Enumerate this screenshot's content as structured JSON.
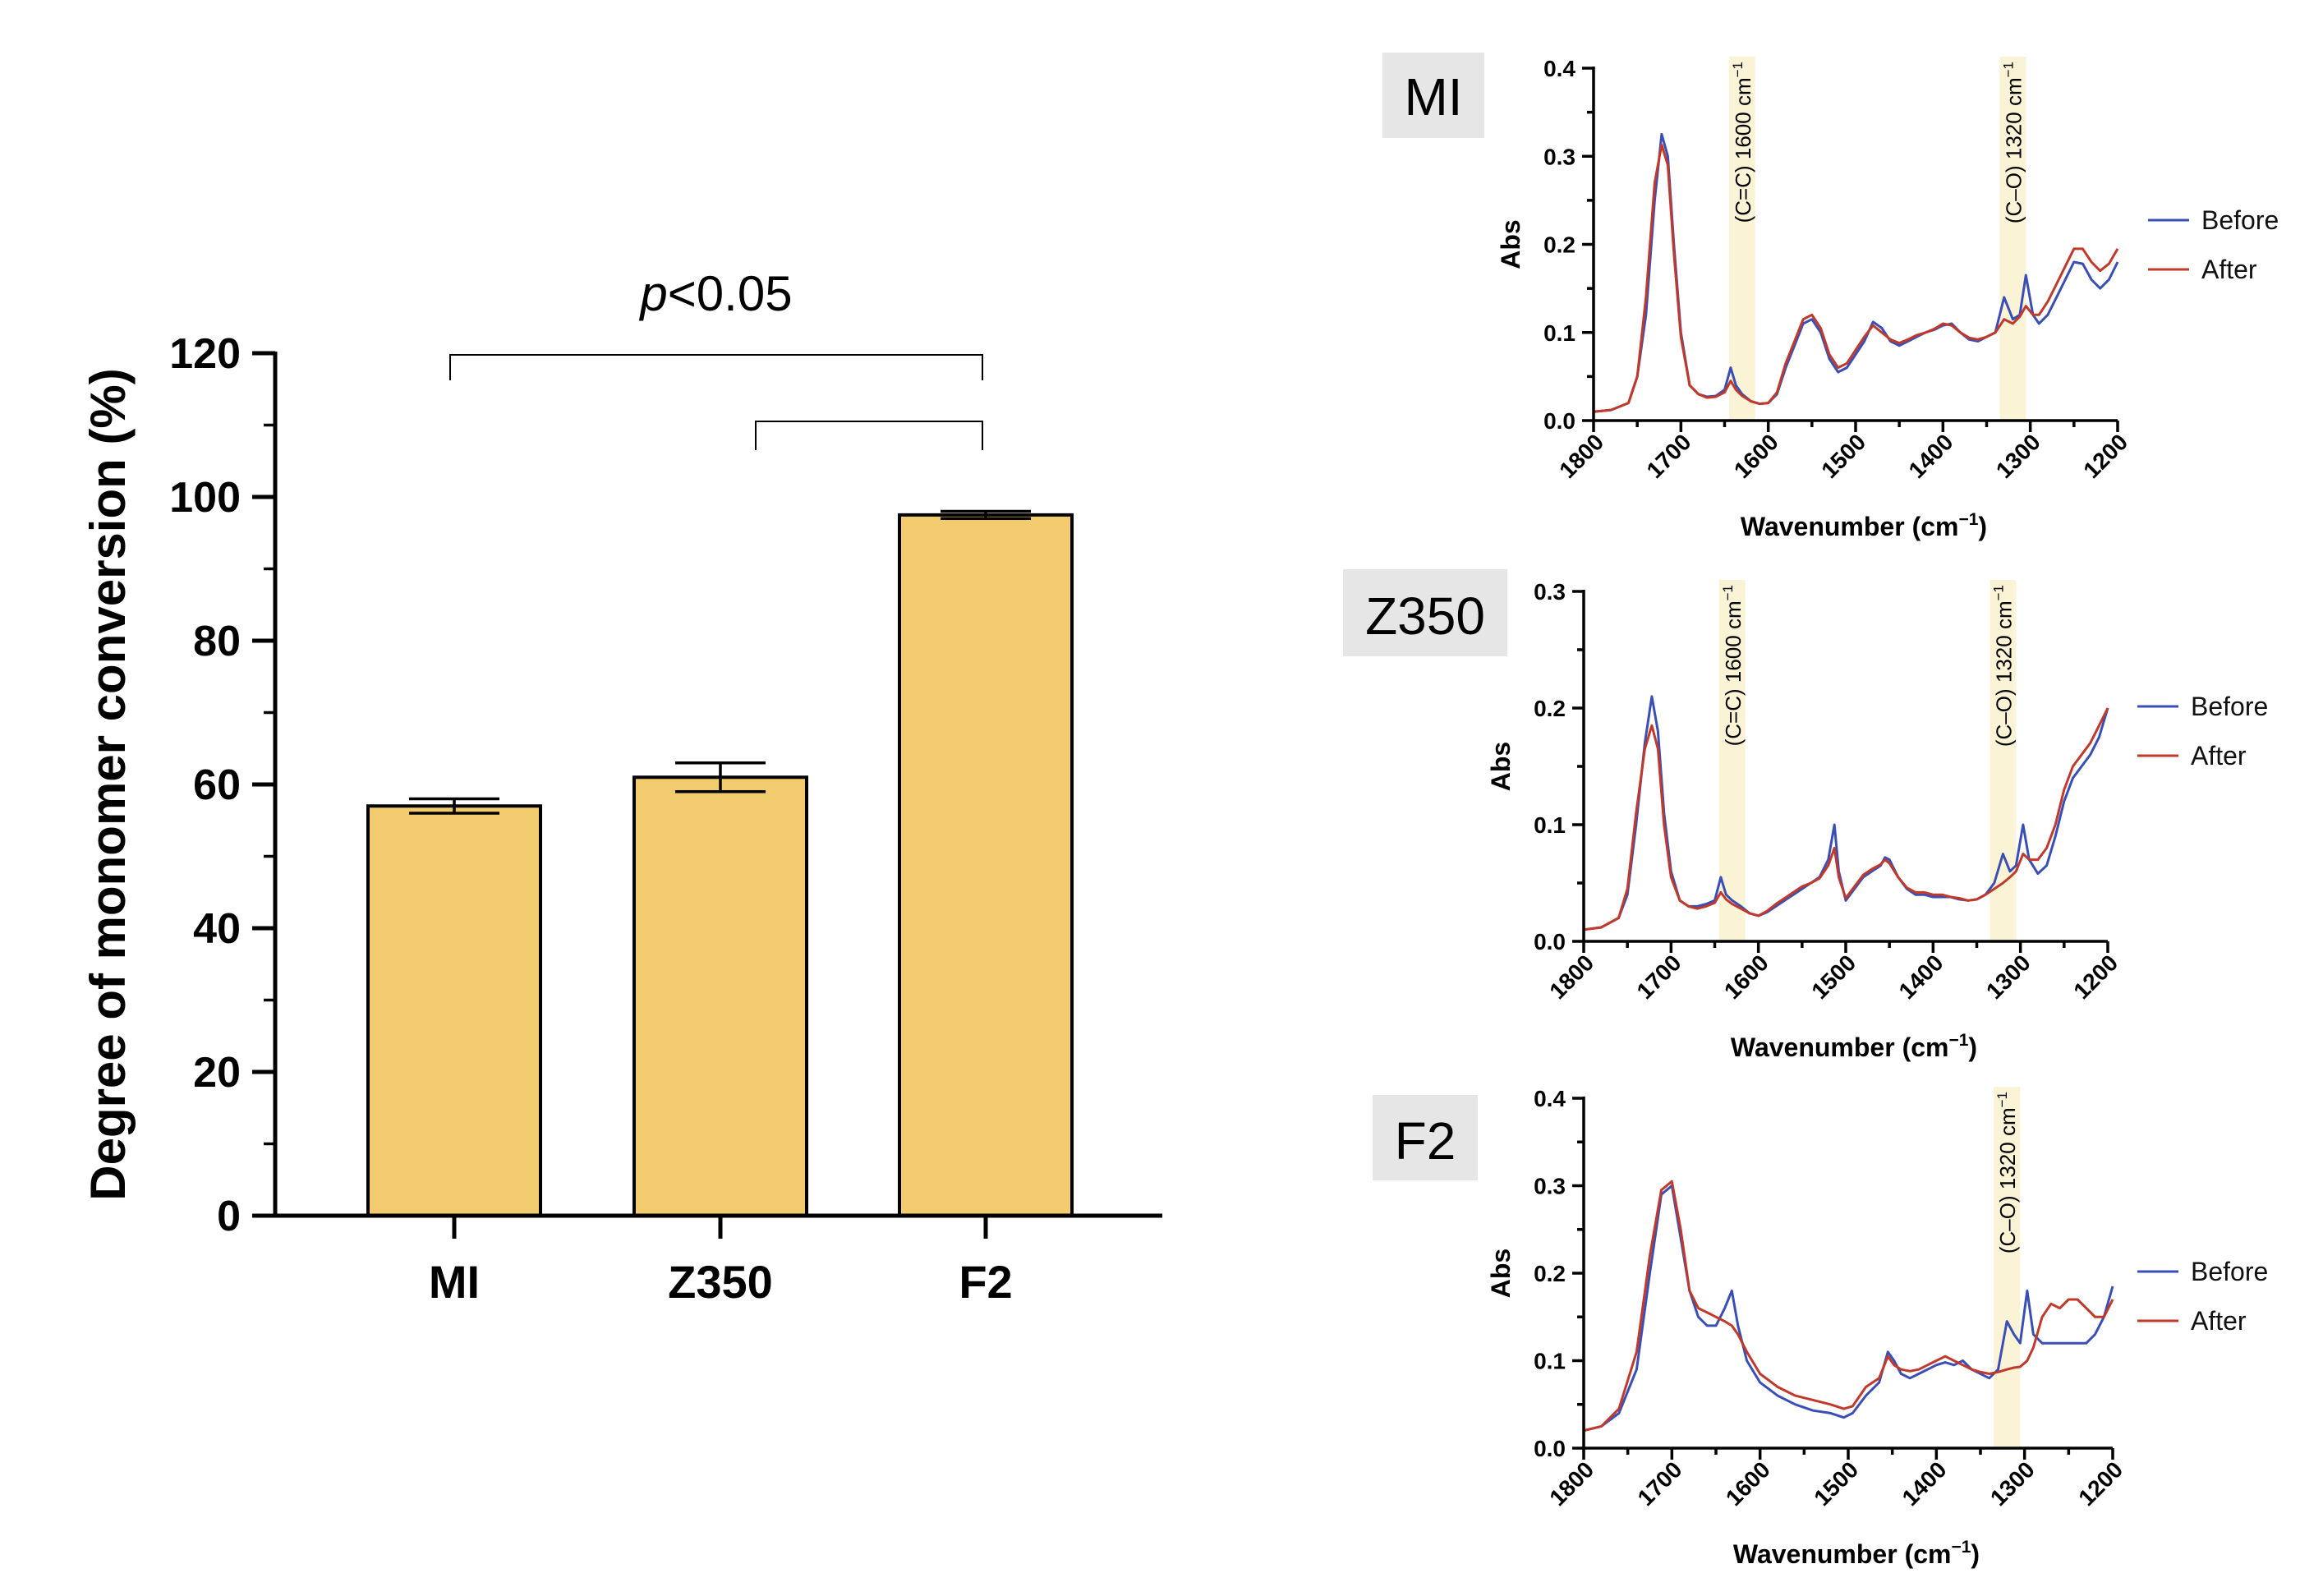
{
  "chart_data": [
    {
      "type": "bar",
      "title": "",
      "xlabel": "",
      "ylabel": "Degree of monomer conversion (%)",
      "categories": [
        "MI",
        "Z350",
        "F2"
      ],
      "values": [
        57,
        61,
        97.5
      ],
      "errors": [
        1.0,
        2.0,
        0.5
      ],
      "ylim": [
        0,
        120
      ],
      "yticks": [
        "0",
        "20",
        "40",
        "60",
        "80",
        "100",
        "120"
      ],
      "bar_color": "#f1cb6e",
      "significance": {
        "label_italic": "p",
        "label_rest": "<0.05",
        "brackets": [
          [
            "MI",
            "F2"
          ],
          [
            "Z350",
            "F2"
          ]
        ]
      },
      "grid": false
    },
    {
      "type": "line",
      "panel_label": "MI",
      "xlabel": "Wavenumber (cm",
      "xlabel_sup": "−1",
      "xlabel_end": ")",
      "ylabel": "Abs",
      "xlim": [
        1800,
        1200
      ],
      "ylim": [
        0,
        0.4
      ],
      "xticks": [
        "1800",
        "1700",
        "1600",
        "1500",
        "1400",
        "1300",
        "1200"
      ],
      "yticks": [
        "0.0",
        "0.1",
        "0.2",
        "0.3",
        "0.4"
      ],
      "bands": [
        {
          "center": 1630,
          "label": "(C=C) 1600 cm",
          "sup": "−1"
        },
        {
          "center": 1320,
          "label": "(C–O) 1320 cm",
          "sup": "−1"
        }
      ],
      "legend_position": "right",
      "series": [
        {
          "name": "Before",
          "color": "#3a4fb5",
          "x": [
            1800,
            1780,
            1760,
            1750,
            1740,
            1730,
            1722,
            1715,
            1708,
            1700,
            1690,
            1680,
            1670,
            1660,
            1650,
            1643,
            1637,
            1630,
            1620,
            1610,
            1600,
            1590,
            1580,
            1570,
            1560,
            1550,
            1540,
            1530,
            1520,
            1510,
            1500,
            1490,
            1480,
            1470,
            1460,
            1450,
            1440,
            1430,
            1420,
            1410,
            1400,
            1390,
            1380,
            1370,
            1360,
            1350,
            1340,
            1330,
            1320,
            1312,
            1305,
            1297,
            1290,
            1280,
            1270,
            1260,
            1250,
            1240,
            1230,
            1220,
            1210,
            1200
          ],
          "y": [
            0.01,
            0.012,
            0.02,
            0.05,
            0.12,
            0.25,
            0.325,
            0.3,
            0.2,
            0.1,
            0.04,
            0.03,
            0.027,
            0.028,
            0.035,
            0.06,
            0.04,
            0.03,
            0.022,
            0.019,
            0.02,
            0.03,
            0.06,
            0.085,
            0.11,
            0.115,
            0.1,
            0.07,
            0.055,
            0.06,
            0.075,
            0.09,
            0.112,
            0.105,
            0.09,
            0.085,
            0.09,
            0.095,
            0.1,
            0.103,
            0.108,
            0.11,
            0.1,
            0.092,
            0.09,
            0.095,
            0.1,
            0.14,
            0.115,
            0.12,
            0.165,
            0.12,
            0.11,
            0.12,
            0.14,
            0.16,
            0.18,
            0.178,
            0.16,
            0.15,
            0.16,
            0.18
          ]
        },
        {
          "name": "After",
          "color": "#c0392b",
          "x": [
            1800,
            1780,
            1760,
            1750,
            1740,
            1730,
            1722,
            1715,
            1708,
            1700,
            1690,
            1680,
            1670,
            1660,
            1650,
            1643,
            1637,
            1630,
            1620,
            1610,
            1600,
            1590,
            1580,
            1570,
            1560,
            1550,
            1540,
            1530,
            1520,
            1510,
            1500,
            1490,
            1480,
            1470,
            1460,
            1450,
            1440,
            1430,
            1420,
            1410,
            1400,
            1390,
            1380,
            1370,
            1360,
            1350,
            1340,
            1330,
            1320,
            1312,
            1305,
            1297,
            1290,
            1280,
            1270,
            1260,
            1250,
            1240,
            1230,
            1220,
            1210,
            1200
          ],
          "y": [
            0.01,
            0.012,
            0.02,
            0.05,
            0.14,
            0.27,
            0.313,
            0.29,
            0.19,
            0.095,
            0.04,
            0.03,
            0.026,
            0.027,
            0.032,
            0.045,
            0.035,
            0.028,
            0.022,
            0.019,
            0.02,
            0.032,
            0.065,
            0.09,
            0.115,
            0.12,
            0.105,
            0.075,
            0.06,
            0.065,
            0.08,
            0.095,
            0.108,
            0.1,
            0.092,
            0.088,
            0.092,
            0.097,
            0.1,
            0.104,
            0.11,
            0.108,
            0.1,
            0.094,
            0.092,
            0.095,
            0.1,
            0.115,
            0.11,
            0.118,
            0.13,
            0.12,
            0.12,
            0.135,
            0.155,
            0.175,
            0.195,
            0.195,
            0.18,
            0.17,
            0.178,
            0.195
          ]
        }
      ]
    },
    {
      "type": "line",
      "panel_label": "Z350",
      "xlabel": "Wavenumber (cm",
      "xlabel_sup": "−1",
      "xlabel_end": ")",
      "ylabel": "Abs",
      "xlim": [
        1800,
        1200
      ],
      "ylim": [
        0,
        0.3
      ],
      "xticks": [
        "1800",
        "1700",
        "1600",
        "1500",
        "1400",
        "1300",
        "1200"
      ],
      "yticks": [
        "0.0",
        "0.1",
        "0.2",
        "0.3"
      ],
      "bands": [
        {
          "center": 1630,
          "label": "(C=C) 1600 cm",
          "sup": "−1"
        },
        {
          "center": 1320,
          "label": "(C–O) 1320 cm",
          "sup": "−1"
        }
      ],
      "legend_position": "right",
      "series": [
        {
          "name": "Before",
          "color": "#3a4fb5",
          "x": [
            1800,
            1780,
            1760,
            1750,
            1740,
            1730,
            1722,
            1715,
            1708,
            1700,
            1690,
            1680,
            1670,
            1660,
            1650,
            1643,
            1637,
            1630,
            1620,
            1610,
            1600,
            1590,
            1580,
            1570,
            1560,
            1550,
            1540,
            1530,
            1520,
            1513,
            1508,
            1500,
            1490,
            1480,
            1470,
            1460,
            1455,
            1450,
            1440,
            1430,
            1420,
            1410,
            1400,
            1390,
            1380,
            1370,
            1360,
            1350,
            1340,
            1330,
            1320,
            1312,
            1305,
            1297,
            1290,
            1280,
            1270,
            1260,
            1250,
            1240,
            1230,
            1220,
            1210,
            1200
          ],
          "y": [
            0.01,
            0.012,
            0.02,
            0.04,
            0.1,
            0.17,
            0.21,
            0.18,
            0.11,
            0.06,
            0.035,
            0.03,
            0.03,
            0.032,
            0.035,
            0.055,
            0.04,
            0.035,
            0.03,
            0.024,
            0.022,
            0.025,
            0.03,
            0.035,
            0.04,
            0.045,
            0.05,
            0.055,
            0.07,
            0.1,
            0.06,
            0.035,
            0.045,
            0.055,
            0.06,
            0.065,
            0.072,
            0.07,
            0.055,
            0.045,
            0.04,
            0.04,
            0.038,
            0.038,
            0.038,
            0.036,
            0.035,
            0.036,
            0.04,
            0.05,
            0.075,
            0.06,
            0.065,
            0.1,
            0.07,
            0.058,
            0.065,
            0.09,
            0.12,
            0.14,
            0.15,
            0.16,
            0.175,
            0.2
          ]
        },
        {
          "name": "After",
          "color": "#c0392b",
          "x": [
            1800,
            1780,
            1760,
            1750,
            1740,
            1730,
            1722,
            1715,
            1708,
            1700,
            1690,
            1680,
            1670,
            1660,
            1650,
            1643,
            1637,
            1630,
            1620,
            1610,
            1600,
            1590,
            1580,
            1570,
            1560,
            1550,
            1540,
            1530,
            1520,
            1513,
            1508,
            1500,
            1490,
            1480,
            1470,
            1460,
            1455,
            1450,
            1440,
            1430,
            1420,
            1410,
            1400,
            1390,
            1380,
            1370,
            1360,
            1350,
            1340,
            1330,
            1320,
            1312,
            1305,
            1297,
            1290,
            1280,
            1270,
            1260,
            1250,
            1240,
            1230,
            1220,
            1210,
            1200
          ],
          "y": [
            0.01,
            0.012,
            0.02,
            0.045,
            0.11,
            0.165,
            0.185,
            0.165,
            0.1,
            0.055,
            0.035,
            0.03,
            0.028,
            0.03,
            0.033,
            0.042,
            0.036,
            0.032,
            0.028,
            0.024,
            0.022,
            0.026,
            0.032,
            0.037,
            0.042,
            0.047,
            0.05,
            0.054,
            0.065,
            0.08,
            0.055,
            0.037,
            0.047,
            0.057,
            0.062,
            0.066,
            0.07,
            0.067,
            0.055,
            0.046,
            0.042,
            0.042,
            0.04,
            0.04,
            0.038,
            0.037,
            0.035,
            0.036,
            0.04,
            0.045,
            0.05,
            0.055,
            0.06,
            0.075,
            0.07,
            0.07,
            0.08,
            0.1,
            0.13,
            0.15,
            0.16,
            0.17,
            0.185,
            0.2
          ]
        }
      ]
    },
    {
      "type": "line",
      "panel_label": "F2",
      "xlabel": "Wavenumber (cm",
      "xlabel_sup": "−1",
      "xlabel_end": ")",
      "ylabel": "Abs",
      "xlim": [
        1800,
        1200
      ],
      "ylim": [
        0,
        0.4
      ],
      "xticks": [
        "1800",
        "1700",
        "1600",
        "1500",
        "1400",
        "1300",
        "1200"
      ],
      "yticks": [
        "0.0",
        "0.1",
        "0.2",
        "0.3",
        "0.4"
      ],
      "bands": [
        {
          "center": 1320,
          "label": "(C–O) 1320 cm",
          "sup": "−1"
        }
      ],
      "legend_position": "right",
      "series": [
        {
          "name": "Before",
          "color": "#3a4fb5",
          "x": [
            1800,
            1780,
            1760,
            1740,
            1725,
            1712,
            1700,
            1690,
            1680,
            1670,
            1660,
            1650,
            1640,
            1632,
            1625,
            1615,
            1600,
            1580,
            1560,
            1540,
            1520,
            1505,
            1495,
            1480,
            1465,
            1455,
            1448,
            1440,
            1430,
            1420,
            1410,
            1400,
            1390,
            1380,
            1370,
            1360,
            1350,
            1340,
            1330,
            1320,
            1312,
            1305,
            1297,
            1290,
            1280,
            1270,
            1260,
            1250,
            1240,
            1230,
            1220,
            1210,
            1200
          ],
          "y": [
            0.02,
            0.025,
            0.04,
            0.09,
            0.2,
            0.29,
            0.3,
            0.24,
            0.18,
            0.15,
            0.14,
            0.14,
            0.16,
            0.18,
            0.14,
            0.1,
            0.075,
            0.06,
            0.05,
            0.043,
            0.04,
            0.035,
            0.04,
            0.06,
            0.075,
            0.11,
            0.1,
            0.085,
            0.08,
            0.085,
            0.09,
            0.095,
            0.098,
            0.095,
            0.1,
            0.09,
            0.085,
            0.08,
            0.09,
            0.145,
            0.13,
            0.12,
            0.18,
            0.13,
            0.12,
            0.12,
            0.12,
            0.12,
            0.12,
            0.12,
            0.13,
            0.15,
            0.185
          ]
        },
        {
          "name": "After",
          "color": "#c0392b",
          "x": [
            1800,
            1780,
            1760,
            1740,
            1725,
            1712,
            1700,
            1690,
            1680,
            1670,
            1660,
            1650,
            1640,
            1632,
            1625,
            1615,
            1600,
            1580,
            1560,
            1540,
            1520,
            1505,
            1495,
            1480,
            1465,
            1455,
            1448,
            1440,
            1430,
            1420,
            1410,
            1400,
            1390,
            1380,
            1370,
            1360,
            1350,
            1340,
            1330,
            1320,
            1312,
            1305,
            1297,
            1290,
            1280,
            1270,
            1260,
            1250,
            1240,
            1230,
            1220,
            1210,
            1200
          ],
          "y": [
            0.02,
            0.025,
            0.045,
            0.11,
            0.22,
            0.295,
            0.305,
            0.25,
            0.18,
            0.16,
            0.155,
            0.15,
            0.145,
            0.14,
            0.13,
            0.11,
            0.085,
            0.07,
            0.06,
            0.055,
            0.05,
            0.045,
            0.048,
            0.07,
            0.08,
            0.105,
            0.095,
            0.09,
            0.088,
            0.09,
            0.095,
            0.1,
            0.105,
            0.1,
            0.095,
            0.09,
            0.087,
            0.085,
            0.087,
            0.09,
            0.092,
            0.093,
            0.1,
            0.115,
            0.15,
            0.165,
            0.16,
            0.17,
            0.17,
            0.16,
            0.15,
            0.15,
            0.17
          ]
        }
      ]
    }
  ]
}
